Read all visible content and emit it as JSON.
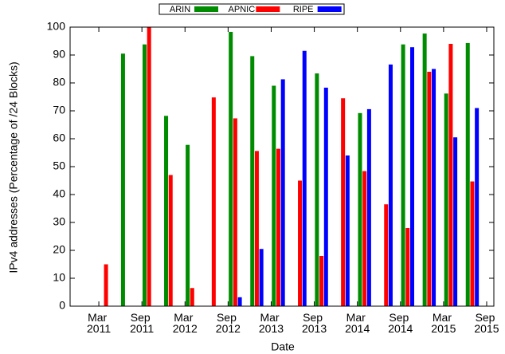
{
  "chart_data": {
    "type": "bar",
    "x_label": "Date",
    "y_label": "IPv4 addresses (Percentage of /24 Blocks)",
    "x": [
      "2011-04",
      "2011-07",
      "2011-10",
      "2012-01",
      "2012-04",
      "2012-07",
      "2012-10",
      "2013-01",
      "2013-04",
      "2013-07",
      "2013-10",
      "2014-01",
      "2014-04",
      "2014-07",
      "2014-10",
      "2015-01",
      "2015-04",
      "2015-07"
    ],
    "series": [
      {
        "name": "ARIN",
        "color": "#008c00",
        "values": [
          null,
          90.5,
          93.8,
          68.2,
          57.8,
          null,
          98.3,
          89.6,
          79,
          null,
          83.4,
          null,
          69.2,
          null,
          93.8,
          97.7,
          76.2,
          94.3
        ]
      },
      {
        "name": "APNIC",
        "color": "#ff0000",
        "values": [
          15,
          null,
          100,
          47,
          6.5,
          74.8,
          67.3,
          55.6,
          56.4,
          45,
          18,
          74.5,
          48.4,
          36.5,
          28,
          84,
          94,
          44.7
        ]
      },
      {
        "name": "RIPE",
        "color": "#0000ff",
        "values": [
          null,
          null,
          null,
          null,
          null,
          null,
          3.2,
          20.5,
          81.3,
          91.5,
          78.3,
          54,
          70.6,
          86.6,
          92.8,
          85,
          60.5,
          71
        ]
      }
    ],
    "xlim": [
      "2010-11",
      "2015-10"
    ],
    "xticks": [
      {
        "value": "2011-03",
        "label": "Mar 2011"
      },
      {
        "value": "2011-09",
        "label": "Sep 2011"
      },
      {
        "value": "2012-03",
        "label": "Mar 2012"
      },
      {
        "value": "2012-09",
        "label": "Sep 2012"
      },
      {
        "value": "2013-03",
        "label": "Mar 2013"
      },
      {
        "value": "2013-09",
        "label": "Sep 2013"
      },
      {
        "value": "2014-03",
        "label": "Mar 2014"
      },
      {
        "value": "2014-09",
        "label": "Sep 2014"
      },
      {
        "value": "2015-03",
        "label": "Mar 2015"
      },
      {
        "value": "2015-09",
        "label": "Sep 2015"
      }
    ],
    "ylim": [
      0,
      100
    ],
    "yticks": [
      0,
      10,
      20,
      30,
      40,
      50,
      60,
      70,
      80,
      90,
      100
    ],
    "legend": "top"
  }
}
